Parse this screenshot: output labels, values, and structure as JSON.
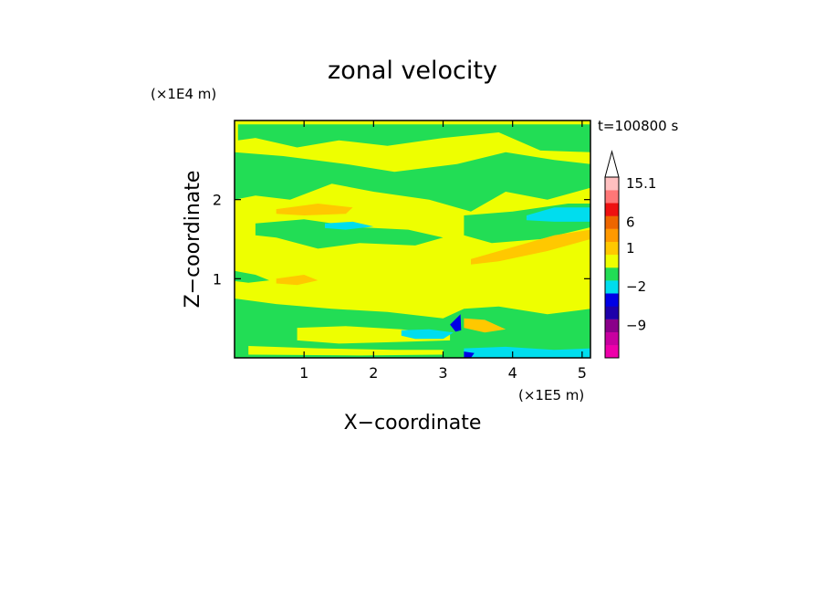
{
  "chart_data": {
    "type": "heatmap",
    "title": "zonal velocity",
    "xlabel": "X−coordinate",
    "ylabel": "Z−coordinate",
    "x_unit": "(×1E5 m)",
    "y_unit": "(×1E4 m)",
    "time_label": "t=100800 s",
    "xlim": [
      0,
      5.12
    ],
    "ylim": [
      0,
      3.0
    ],
    "x_ticks": [
      {
        "value": 1,
        "label": "1"
      },
      {
        "value": 2,
        "label": "2"
      },
      {
        "value": 3,
        "label": "3"
      },
      {
        "value": 4,
        "label": "4"
      },
      {
        "value": 5,
        "label": "5"
      }
    ],
    "y_ticks": [
      {
        "value": 1,
        "label": "1"
      },
      {
        "value": 2,
        "label": "2"
      }
    ],
    "colorbar": {
      "levels": [
        {
          "value": -16,
          "color": "#ee00aa"
        },
        {
          "value": -12,
          "color": "#c800a0"
        },
        {
          "value": -9,
          "color": "#8a008a"
        },
        {
          "value": -6,
          "color": "#1e00aa"
        },
        {
          "value": -4,
          "color": "#0000e6"
        },
        {
          "value": -2,
          "color": "#00ddee"
        },
        {
          "value": -1,
          "color": "#22dd55"
        },
        {
          "value": 0,
          "color": "#eeff00"
        },
        {
          "value": 1,
          "color": "#ffc800"
        },
        {
          "value": 3,
          "color": "#ff9900"
        },
        {
          "value": 6,
          "color": "#ee6600"
        },
        {
          "value": 9,
          "color": "#ee1111"
        },
        {
          "value": 12,
          "color": "#ff7777"
        },
        {
          "value": 15.1,
          "color": "#ffc0c0"
        }
      ],
      "labels": [
        {
          "value": 15.1,
          "label": "15.1"
        },
        {
          "value": 6,
          "label": "6"
        },
        {
          "value": 1,
          "label": "1"
        },
        {
          "value": -2,
          "label": "−2"
        },
        {
          "value": -9,
          "label": "−9"
        }
      ]
    },
    "field": {
      "background": "#eeff00",
      "regions": [
        {
          "color": "#22dd55",
          "name": "top-band",
          "pts": [
            [
              0.05,
              2.95
            ],
            [
              5.12,
              2.95
            ],
            [
              5.12,
              2.6
            ],
            [
              4.4,
              2.62
            ],
            [
              3.8,
              2.85
            ],
            [
              3.0,
              2.78
            ],
            [
              2.2,
              2.68
            ],
            [
              1.5,
              2.75
            ],
            [
              0.9,
              2.66
            ],
            [
              0.3,
              2.78
            ],
            [
              0.05,
              2.75
            ]
          ]
        },
        {
          "color": "#22dd55",
          "name": "upper-band",
          "pts": [
            [
              0.0,
              2.6
            ],
            [
              0.7,
              2.55
            ],
            [
              1.6,
              2.45
            ],
            [
              2.3,
              2.35
            ],
            [
              3.2,
              2.45
            ],
            [
              3.9,
              2.6
            ],
            [
              4.6,
              2.5
            ],
            [
              5.12,
              2.45
            ],
            [
              5.12,
              2.15
            ],
            [
              4.5,
              2.0
            ],
            [
              3.9,
              2.1
            ],
            [
              3.4,
              1.85
            ],
            [
              2.8,
              2.0
            ],
            [
              2.0,
              2.1
            ],
            [
              1.4,
              2.2
            ],
            [
              0.8,
              2.0
            ],
            [
              0.3,
              2.05
            ],
            [
              0.0,
              2.0
            ]
          ]
        },
        {
          "color": "#22dd55",
          "name": "middle-band",
          "pts": [
            [
              0.3,
              1.7
            ],
            [
              1.0,
              1.75
            ],
            [
              1.8,
              1.65
            ],
            [
              2.5,
              1.62
            ],
            [
              3.0,
              1.52
            ],
            [
              2.6,
              1.42
            ],
            [
              1.8,
              1.45
            ],
            [
              1.2,
              1.38
            ],
            [
              0.6,
              1.52
            ],
            [
              0.3,
              1.55
            ]
          ]
        },
        {
          "color": "#22dd55",
          "name": "right-middle",
          "pts": [
            [
              3.3,
              1.8
            ],
            [
              4.0,
              1.85
            ],
            [
              4.8,
              1.95
            ],
            [
              5.12,
              1.95
            ],
            [
              5.12,
              1.65
            ],
            [
              4.4,
              1.5
            ],
            [
              3.7,
              1.45
            ],
            [
              3.3,
              1.55
            ]
          ]
        },
        {
          "color": "#22dd55",
          "name": "left-small",
          "pts": [
            [
              0.0,
              1.1
            ],
            [
              0.3,
              1.05
            ],
            [
              0.5,
              0.98
            ],
            [
              0.2,
              0.95
            ],
            [
              0.0,
              0.97
            ]
          ]
        },
        {
          "color": "#22dd55",
          "name": "bottom-band",
          "pts": [
            [
              0.0,
              0.75
            ],
            [
              0.6,
              0.68
            ],
            [
              1.4,
              0.62
            ],
            [
              2.2,
              0.58
            ],
            [
              3.0,
              0.5
            ],
            [
              3.3,
              0.62
            ],
            [
              3.8,
              0.65
            ],
            [
              4.5,
              0.55
            ],
            [
              5.12,
              0.62
            ],
            [
              5.12,
              0.0
            ],
            [
              0.0,
              0.0
            ]
          ]
        },
        {
          "color": "#ffc800",
          "name": "orange-upper-left",
          "pts": [
            [
              0.6,
              1.88
            ],
            [
              1.2,
              1.95
            ],
            [
              1.7,
              1.9
            ],
            [
              1.6,
              1.82
            ],
            [
              1.0,
              1.8
            ],
            [
              0.6,
              1.82
            ]
          ]
        },
        {
          "color": "#ffc800",
          "name": "orange-right",
          "pts": [
            [
              3.4,
              1.25
            ],
            [
              4.0,
              1.4
            ],
            [
              4.6,
              1.55
            ],
            [
              5.12,
              1.62
            ],
            [
              5.12,
              1.5
            ],
            [
              4.5,
              1.35
            ],
            [
              3.8,
              1.22
            ],
            [
              3.4,
              1.18
            ]
          ]
        },
        {
          "color": "#ffc800",
          "name": "orange-left-mid",
          "pts": [
            [
              0.6,
              1.0
            ],
            [
              1.0,
              1.05
            ],
            [
              1.2,
              0.98
            ],
            [
              0.9,
              0.92
            ],
            [
              0.6,
              0.94
            ]
          ]
        },
        {
          "color": "#ffc800",
          "name": "orange-bottom-right",
          "pts": [
            [
              3.3,
              0.5
            ],
            [
              3.6,
              0.48
            ],
            [
              3.9,
              0.36
            ],
            [
              3.6,
              0.32
            ],
            [
              3.3,
              0.38
            ]
          ]
        },
        {
          "color": "#eeff00",
          "name": "yellow-bottom",
          "pts": [
            [
              0.9,
              0.38
            ],
            [
              1.6,
              0.4
            ],
            [
              2.4,
              0.36
            ],
            [
              3.1,
              0.3
            ],
            [
              3.1,
              0.22
            ],
            [
              2.3,
              0.2
            ],
            [
              1.5,
              0.18
            ],
            [
              0.9,
              0.22
            ]
          ]
        },
        {
          "color": "#eeff00",
          "name": "yellow-bottom-lower",
          "pts": [
            [
              0.2,
              0.15
            ],
            [
              1.2,
              0.12
            ],
            [
              2.3,
              0.1
            ],
            [
              3.0,
              0.1
            ],
            [
              3.0,
              0.04
            ],
            [
              1.8,
              0.03
            ],
            [
              0.2,
              0.04
            ]
          ]
        },
        {
          "color": "#00ddee",
          "name": "cyan-upper-right",
          "pts": [
            [
              4.2,
              1.8
            ],
            [
              4.6,
              1.9
            ],
            [
              5.12,
              1.9
            ],
            [
              5.12,
              1.72
            ],
            [
              4.6,
              1.72
            ],
            [
              4.2,
              1.74
            ]
          ]
        },
        {
          "color": "#00ddee",
          "name": "cyan-left",
          "pts": [
            [
              1.3,
              1.7
            ],
            [
              1.7,
              1.72
            ],
            [
              2.0,
              1.66
            ],
            [
              1.6,
              1.62
            ],
            [
              1.3,
              1.64
            ]
          ]
        },
        {
          "color": "#00ddee",
          "name": "cyan-bottom-left",
          "pts": [
            [
              2.4,
              0.35
            ],
            [
              2.8,
              0.36
            ],
            [
              3.15,
              0.32
            ],
            [
              3.0,
              0.24
            ],
            [
              2.6,
              0.24
            ],
            [
              2.4,
              0.28
            ]
          ]
        },
        {
          "color": "#00ddee",
          "name": "cyan-bottom-right",
          "pts": [
            [
              3.3,
              0.12
            ],
            [
              3.9,
              0.14
            ],
            [
              4.6,
              0.1
            ],
            [
              5.12,
              0.12
            ],
            [
              5.12,
              0.0
            ],
            [
              3.3,
              0.0
            ]
          ]
        },
        {
          "color": "#0000e6",
          "name": "blue-jet",
          "pts": [
            [
              3.1,
              0.42
            ],
            [
              3.25,
              0.55
            ],
            [
              3.26,
              0.35
            ],
            [
              3.18,
              0.33
            ]
          ]
        },
        {
          "color": "#0000e6",
          "name": "blue-bottom",
          "pts": [
            [
              3.3,
              0.08
            ],
            [
              3.45,
              0.06
            ],
            [
              3.4,
              0.0
            ],
            [
              3.3,
              0.0
            ]
          ]
        }
      ]
    }
  }
}
